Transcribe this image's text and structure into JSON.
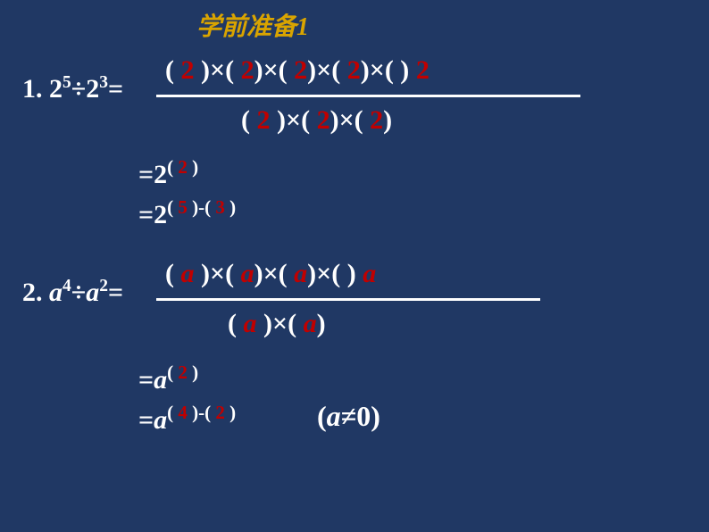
{
  "title": "学前准备1",
  "colors": {
    "background": "#203864",
    "text": "#ffffff",
    "title": "#d9a400",
    "accent": "#c00000"
  },
  "problem1": {
    "label": "1. ",
    "lhs_base": "2",
    "lhs_exp1": "5",
    "lhs_op": "÷",
    "lhs_exp2": "3",
    "eq": "=",
    "num_parts": [
      "(    )×(     )×(     )×(     )×(     )"
    ],
    "num_vals": [
      "2",
      "2",
      "2",
      "2",
      "2"
    ],
    "den_parts": [
      "(    )×(     )×(     )"
    ],
    "den_vals": [
      "2",
      "2",
      "2"
    ],
    "step1_prefix": "=2",
    "step1_lp": "(  ",
    "step1_val": "2",
    "step1_rp": "  )",
    "step2_prefix": "=2",
    "step2_lp1": "( ",
    "step2_v1": "5",
    "step2_mid": " )-( ",
    "step2_v2": "3",
    "step2_rp": " )"
  },
  "problem2": {
    "label": "2. ",
    "lhs_base": "a",
    "lhs_exp1": "4",
    "lhs_op": "÷",
    "lhs_exp2": "2",
    "eq": "=",
    "num_parts": [
      "(    )×(     )×(     )×(     )"
    ],
    "num_vals": [
      "a",
      "a",
      "a",
      "a"
    ],
    "den_parts": [
      "(     )×(     )"
    ],
    "den_vals": [
      "a",
      "a"
    ],
    "step1_prefix": "=",
    "step1_base": "a",
    "step1_lp": "( ",
    "step1_val": "2",
    "step1_rp": " )",
    "step2_prefix": "=",
    "step2_base": "a",
    "step2_lp1": "( ",
    "step2_v1": "4",
    "step2_mid": " )-( ",
    "step2_v2": "2",
    "step2_rp": " )",
    "cond_lp": "(",
    "cond_base": "a",
    "cond_ne": "≠0",
    "cond_rp": ")"
  }
}
